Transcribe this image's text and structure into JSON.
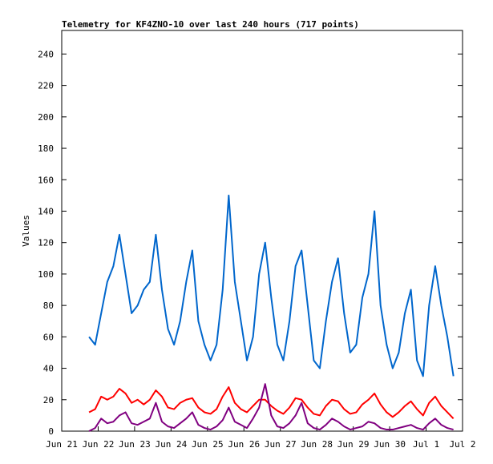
{
  "chart_data": {
    "type": "line",
    "title": "Telemetry for KF4ZNO-10 over last 240 hours (717 points)",
    "y_label": "Values",
    "x": [
      0.75,
      0.917,
      1.083,
      1.25,
      1.417,
      1.583,
      1.75,
      1.917,
      2.083,
      2.25,
      2.417,
      2.583,
      2.75,
      2.917,
      3.083,
      3.25,
      3.417,
      3.583,
      3.75,
      3.917,
      4.083,
      4.25,
      4.417,
      4.583,
      4.75,
      4.917,
      5.083,
      5.25,
      5.417,
      5.583,
      5.75,
      5.917,
      6.083,
      6.25,
      6.417,
      6.583,
      6.75,
      6.917,
      7.083,
      7.25,
      7.417,
      7.583,
      7.75,
      7.917,
      8.083,
      8.25,
      8.417,
      8.583,
      8.75,
      8.917,
      9.083,
      9.25,
      9.417,
      9.583,
      9.75,
      9.917,
      10.083,
      10.25,
      10.417,
      10.583,
      10.75
    ],
    "series": [
      {
        "color": "#0066cc",
        "values": [
          60,
          55,
          75,
          95,
          105,
          125,
          100,
          75,
          80,
          90,
          95,
          125,
          90,
          65,
          55,
          70,
          95,
          115,
          70,
          55,
          45,
          55,
          90,
          150,
          95,
          70,
          45,
          60,
          100,
          120,
          85,
          55,
          45,
          70,
          105,
          115,
          80,
          45,
          40,
          70,
          95,
          110,
          75,
          50,
          55,
          85,
          100,
          140,
          80,
          55,
          40,
          50,
          75,
          90,
          45,
          35,
          80,
          105,
          80,
          60,
          35
        ]
      },
      {
        "color": "#ff0000",
        "values": [
          12,
          14,
          22,
          20,
          22,
          27,
          24,
          18,
          20,
          17,
          20,
          26,
          22,
          15,
          14,
          18,
          20,
          21,
          15,
          12,
          11,
          14,
          22,
          28,
          18,
          14,
          12,
          16,
          20,
          20,
          16,
          13,
          11,
          15,
          21,
          20,
          15,
          11,
          10,
          16,
          20,
          19,
          14,
          11,
          12,
          17,
          20,
          24,
          17,
          12,
          9,
          12,
          16,
          19,
          14,
          10,
          18,
          22,
          16,
          12,
          8
        ]
      },
      {
        "color": "#800080",
        "values": [
          0,
          2,
          8,
          5,
          6,
          10,
          12,
          5,
          4,
          6,
          8,
          18,
          6,
          3,
          2,
          5,
          8,
          12,
          4,
          2,
          1,
          3,
          7,
          15,
          6,
          4,
          2,
          8,
          15,
          30,
          10,
          3,
          2,
          5,
          10,
          18,
          5,
          2,
          1,
          4,
          8,
          6,
          3,
          1,
          2,
          3,
          6,
          5,
          2,
          1,
          1,
          2,
          3,
          4,
          2,
          1,
          5,
          8,
          4,
          2,
          1
        ]
      }
    ],
    "xlim": [
      0,
      11
    ],
    "xticks": [
      {
        "value": 0,
        "label": "Jun 21"
      },
      {
        "value": 1,
        "label": "Jun 22"
      },
      {
        "value": 2,
        "label": "Jun 23"
      },
      {
        "value": 3,
        "label": "Jun 24"
      },
      {
        "value": 4,
        "label": "Jun 25"
      },
      {
        "value": 5,
        "label": "Jun 26"
      },
      {
        "value": 6,
        "label": "Jun 27"
      },
      {
        "value": 7,
        "label": "Jun 28"
      },
      {
        "value": 8,
        "label": "Jun 29"
      },
      {
        "value": 9,
        "label": "Jun 30"
      },
      {
        "value": 10,
        "label": "Jul 1"
      },
      {
        "value": 11,
        "label": "Jul 2"
      }
    ],
    "ylim": [
      0,
      255
    ],
    "yticks": [
      0,
      20,
      40,
      60,
      80,
      100,
      120,
      140,
      160,
      180,
      200,
      220,
      240
    ]
  }
}
